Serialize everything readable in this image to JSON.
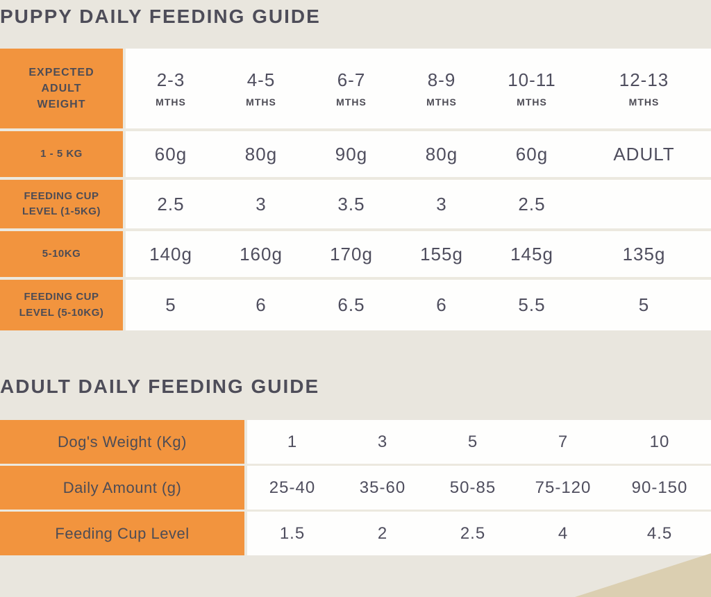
{
  "colors": {
    "background": "#e9e6de",
    "accent_orange": "#f2943e",
    "cell_white": "#fefefd",
    "text_dark": "#4e4d59",
    "separator": "#ece9df",
    "package_tan": "#dbcfb1"
  },
  "puppy_table": {
    "title": "PUPPY DAILY FEEDING GUIDE",
    "corner_header": "EXPECTED ADULT WEIGHT",
    "age_unit": "MTHS",
    "age_columns": [
      "2-3",
      "4-5",
      "6-7",
      "8-9",
      "10-11",
      "12-13"
    ],
    "rows": [
      {
        "label": "1 - 5 KG",
        "values": [
          "60g",
          "80g",
          "90g",
          "80g",
          "60g",
          "ADULT"
        ]
      },
      {
        "label": "FEEDING CUP LEVEL (1-5KG)",
        "values": [
          "2.5",
          "3",
          "3.5",
          "3",
          "2.5",
          ""
        ]
      },
      {
        "label": "5-10KG",
        "values": [
          "140g",
          "160g",
          "170g",
          "155g",
          "145g",
          "135g"
        ]
      },
      {
        "label": "FEEDING CUP LEVEL (5-10KG)",
        "values": [
          "5",
          "6",
          "6.5",
          "6",
          "5.5",
          "5"
        ]
      }
    ]
  },
  "adult_table": {
    "title": "ADULT DAILY FEEDING GUIDE",
    "rows": [
      {
        "label": "Dog's Weight (Kg)",
        "values": [
          "1",
          "3",
          "5",
          "7",
          "10"
        ]
      },
      {
        "label": "Daily Amount (g)",
        "values": [
          "25-40",
          "35-60",
          "50-85",
          "75-120",
          "90-150"
        ]
      },
      {
        "label": "Feeding Cup Level",
        "values": [
          "1.5",
          "2",
          "2.5",
          "4",
          "4.5"
        ]
      }
    ]
  }
}
